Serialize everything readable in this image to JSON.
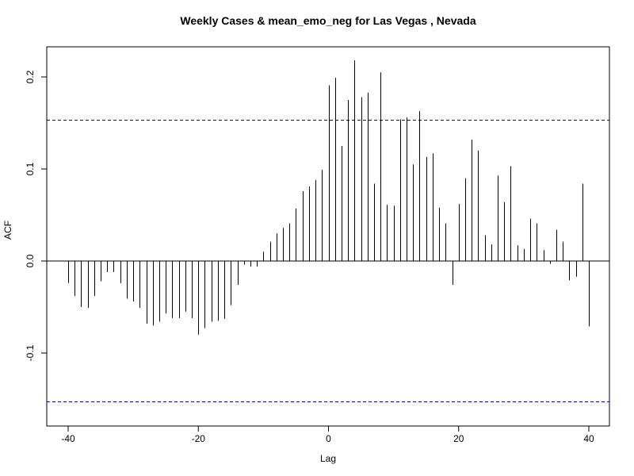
{
  "chart_data": {
    "type": "bar",
    "title": "Weekly Cases & mean_emo_neg for Las Vegas , Nevada",
    "xlabel": "Lag",
    "ylabel": "ACF",
    "xlim": [
      -40,
      40
    ],
    "ylim": [
      -0.155,
      0.22
    ],
    "x_ticks": [
      -40,
      -20,
      0,
      20,
      40
    ],
    "x_tick_labels": [
      "-40",
      "-20",
      "0",
      "20",
      "40"
    ],
    "y_ticks": [
      -0.1,
      0.0,
      0.1,
      0.2
    ],
    "y_tick_labels": [
      "-0.1",
      "0.0",
      "0.1",
      "0.2"
    ],
    "confidence_band": {
      "upper": 0.153,
      "lower": -0.153,
      "color": "#0000cc",
      "style": "dashed"
    },
    "zero_line": true,
    "grid": false,
    "series": [
      {
        "lags": [
          -40,
          -39,
          -38,
          -37,
          -36,
          -35,
          -34,
          -33,
          -32,
          -31,
          -30,
          -29,
          -28,
          -27,
          -26,
          -25,
          -24,
          -23,
          -22,
          -21,
          -20,
          -19,
          -18,
          -17,
          -16,
          -15,
          -14,
          -13,
          -12,
          -11,
          -10,
          -9,
          -8,
          -7,
          -6,
          -5,
          -4,
          -3,
          -2,
          -1,
          0,
          1,
          2,
          3,
          4,
          5,
          6,
          7,
          8,
          9,
          10,
          11,
          12,
          13,
          14,
          15,
          16,
          17,
          18,
          19,
          20,
          21,
          22,
          23,
          24,
          25,
          26,
          27,
          28,
          29,
          30,
          31,
          32,
          33,
          34,
          35,
          36,
          37,
          38,
          39,
          40
        ],
        "values": [
          -0.024,
          -0.038,
          -0.05,
          -0.051,
          -0.038,
          -0.022,
          -0.012,
          -0.012,
          -0.024,
          -0.041,
          -0.044,
          -0.051,
          -0.068,
          -0.07,
          -0.066,
          -0.057,
          -0.062,
          -0.062,
          -0.055,
          -0.062,
          -0.08,
          -0.073,
          -0.066,
          -0.065,
          -0.063,
          -0.048,
          -0.026,
          -0.004,
          -0.006,
          -0.006,
          0.01,
          0.021,
          0.03,
          0.036,
          0.041,
          0.057,
          0.076,
          0.081,
          0.088,
          0.099,
          0.191,
          0.199,
          0.125,
          0.175,
          0.218,
          0.178,
          0.183,
          0.084,
          0.205,
          0.061,
          0.06,
          0.154,
          0.156,
          0.105,
          0.163,
          0.113,
          0.117,
          0.058,
          0.041,
          -0.026,
          0.062,
          0.09,
          0.132,
          0.12,
          0.028,
          0.018,
          0.093,
          0.064,
          0.103,
          0.017,
          0.013,
          0.046,
          0.041,
          0.012,
          -0.003,
          0.034,
          0.021,
          -0.021,
          -0.017,
          0.084,
          -0.071
        ]
      }
    ]
  }
}
